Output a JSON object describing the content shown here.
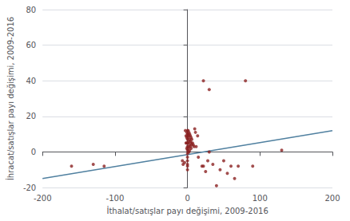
{
  "chart_data": {
    "type": "scatter",
    "xlabel": "İthalat/satışlar payı değişimi, 2009-2016",
    "ylabel": "İhracat/satışlar payı değişimi, 2009-2016",
    "xlim": [
      -200,
      200
    ],
    "ylim": [
      -20,
      80
    ],
    "xticks": [
      -200,
      -100,
      0,
      100,
      200
    ],
    "yticks": [
      -20,
      0,
      20,
      40,
      60,
      80
    ],
    "grid": true,
    "series": [
      {
        "type": "scatter",
        "color": "#8B2222",
        "x": [
          -160,
          -130,
          -115,
          -7,
          -6,
          -4,
          -3,
          -2,
          -2,
          -1,
          -1,
          -1,
          -1,
          0,
          0,
          0,
          0,
          0,
          0,
          0,
          0,
          0,
          0,
          0,
          0,
          0,
          1,
          1,
          1,
          1,
          1,
          1,
          2,
          2,
          2,
          2,
          2,
          3,
          3,
          3,
          3,
          4,
          4,
          4,
          5,
          5,
          5,
          6,
          6,
          7,
          8,
          9,
          10,
          11,
          12,
          14,
          15,
          20,
          22,
          25,
          28,
          30,
          35,
          40,
          45,
          50,
          55,
          60,
          65,
          70,
          80,
          90,
          130,
          22,
          30
        ],
        "values": [
          -8,
          -7,
          -8,
          -5,
          -7,
          -6,
          12,
          9,
          5,
          11,
          8,
          5,
          2,
          12,
          10,
          9,
          7,
          5,
          3,
          1,
          -1,
          -3,
          -5,
          -7,
          -8,
          -10,
          12,
          10,
          8,
          5,
          2,
          0,
          11,
          9,
          6,
          3,
          0,
          10,
          7,
          4,
          1,
          9,
          6,
          3,
          8,
          5,
          2,
          7,
          4,
          5,
          4,
          3,
          13,
          11,
          3,
          9,
          -3,
          -8,
          -8,
          -11,
          -5,
          0,
          -7,
          -19,
          -10,
          -5,
          -12,
          -8,
          -15,
          -8,
          40,
          -8,
          1,
          40,
          35
        ]
      },
      {
        "type": "line",
        "color": "#5080A0",
        "x": [
          -200,
          200
        ],
        "values": [
          -15,
          12
        ]
      }
    ]
  }
}
